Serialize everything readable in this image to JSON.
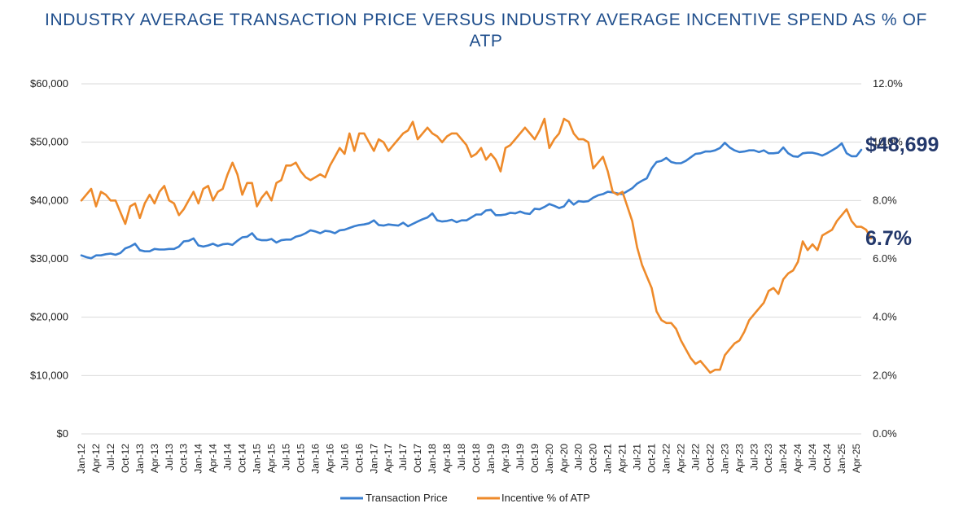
{
  "title_line1": "INDUSTRY AVERAGE TRANSACTION PRICE VERSUS INDUSTRY AVERAGE INCENTIVE SPEND AS % OF",
  "title_line2": "ATP",
  "colors": {
    "atp": "#3a7fd0",
    "incentive": "#ee8a2a",
    "grid": "#d9d9d9",
    "callout": "#23386b",
    "title": "#1f4e8c"
  },
  "chart_data": {
    "type": "line",
    "title": "INDUSTRY AVERAGE TRANSACTION PRICE VERSUS INDUSTRY AVERAGE INCENTIVE SPEND AS % OF ATP",
    "x_start": "Jan-12",
    "x_end": "Apr-25",
    "x_tick_labels": [
      "Jan-12",
      "Apr-12",
      "Jul-12",
      "Oct-12",
      "Jan-13",
      "Apr-13",
      "Jul-13",
      "Oct-13",
      "Jan-14",
      "Apr-14",
      "Jul-14",
      "Oct-14",
      "Jan-15",
      "Apr-15",
      "Jul-15",
      "Oct-15",
      "Jan-16",
      "Apr-16",
      "Jul-16",
      "Oct-16",
      "Jan-17",
      "Apr-17",
      "Jul-17",
      "Oct-17",
      "Jan-18",
      "Apr-18",
      "Jul-18",
      "Oct-18",
      "Jan-19",
      "Apr-19",
      "Jul-19",
      "Oct-19",
      "Jan-20",
      "Apr-20",
      "Jul-20",
      "Oct-20",
      "Jan-21",
      "Apr-21",
      "Jul-21",
      "Oct-21",
      "Jan-22",
      "Apr-22",
      "Jul-22",
      "Oct-22",
      "Jan-23",
      "Apr-23",
      "Jul-23",
      "Oct-23",
      "Jan-24",
      "Apr-24",
      "Jul-24",
      "Oct-24",
      "Jan-25",
      "Apr-25"
    ],
    "y_left": {
      "min": 0,
      "max": 60000,
      "ticks": [
        "$0",
        "$10,000",
        "$20,000",
        "$30,000",
        "$40,000",
        "$50,000",
        "$60,000"
      ]
    },
    "y_right": {
      "min": 0,
      "max": 12,
      "ticks": [
        "0.0%",
        "2.0%",
        "4.0%",
        "6.0%",
        "8.0%",
        "10.0%",
        "12.0%"
      ]
    },
    "series": [
      {
        "name": "Transaction Price",
        "axis": "left",
        "values": [
          30600,
          30300,
          30100,
          30600,
          30600,
          30800,
          30900,
          30700,
          31000,
          31800,
          32100,
          32600,
          31500,
          31300,
          31300,
          31700,
          31600,
          31600,
          31700,
          31700,
          32100,
          33000,
          33100,
          33500,
          32300,
          32100,
          32300,
          32600,
          32200,
          32500,
          32600,
          32400,
          33100,
          33700,
          33800,
          34400,
          33400,
          33200,
          33200,
          33400,
          32800,
          33200,
          33300,
          33300,
          33800,
          34000,
          34400,
          34900,
          34700,
          34400,
          34800,
          34700,
          34400,
          34900,
          35000,
          35300,
          35600,
          35800,
          35900,
          36100,
          36600,
          35800,
          35700,
          35900,
          35800,
          35700,
          36200,
          35600,
          36000,
          36400,
          36800,
          37100,
          37800,
          36600,
          36400,
          36500,
          36700,
          36300,
          36600,
          36600,
          37100,
          37600,
          37600,
          38300,
          38400,
          37500,
          37500,
          37600,
          37900,
          37800,
          38100,
          37800,
          37700,
          38600,
          38500,
          38900,
          39400,
          39100,
          38700,
          39000,
          40100,
          39300,
          39900,
          39800,
          39900,
          40500,
          40900,
          41100,
          41500,
          41400,
          41200,
          41100,
          41600,
          42100,
          42900,
          43400,
          43800,
          45500,
          46600,
          46800,
          47300,
          46600,
          46400,
          46400,
          46800,
          47400,
          48000,
          48100,
          48400,
          48400,
          48600,
          49000,
          49900,
          49100,
          48600,
          48300,
          48400,
          48600,
          48600,
          48300,
          48600,
          48100,
          48100,
          48200,
          49100,
          48100,
          47600,
          47500,
          48100,
          48200,
          48200,
          48000,
          47700,
          48100,
          48600,
          49100,
          49800,
          48100,
          47600,
          47600,
          48699
        ]
      },
      {
        "name": "Incentive % of ATP",
        "axis": "right",
        "values": [
          8.0,
          8.2,
          8.4,
          7.8,
          8.3,
          8.2,
          8.0,
          8.0,
          7.6,
          7.2,
          7.8,
          7.9,
          7.4,
          7.9,
          8.2,
          7.9,
          8.3,
          8.5,
          8.0,
          7.9,
          7.5,
          7.7,
          8.0,
          8.3,
          7.9,
          8.4,
          8.5,
          8.0,
          8.3,
          8.4,
          8.9,
          9.3,
          8.9,
          8.2,
          8.6,
          8.6,
          7.8,
          8.1,
          8.3,
          8.0,
          8.6,
          8.7,
          9.2,
          9.2,
          9.3,
          9.0,
          8.8,
          8.7,
          8.8,
          8.9,
          8.8,
          9.2,
          9.5,
          9.8,
          9.6,
          10.3,
          9.7,
          10.3,
          10.3,
          10.0,
          9.7,
          10.1,
          10.0,
          9.7,
          9.9,
          10.1,
          10.3,
          10.4,
          10.7,
          10.1,
          10.3,
          10.5,
          10.3,
          10.2,
          10.0,
          10.2,
          10.3,
          10.3,
          10.1,
          9.9,
          9.5,
          9.6,
          9.8,
          9.4,
          9.6,
          9.4,
          9.0,
          9.8,
          9.9,
          10.1,
          10.3,
          10.5,
          10.3,
          10.1,
          10.4,
          10.8,
          9.8,
          10.1,
          10.3,
          10.8,
          10.7,
          10.3,
          10.1,
          10.1,
          10.0,
          9.1,
          9.3,
          9.5,
          9.0,
          8.3,
          8.2,
          8.3,
          7.8,
          7.3,
          6.4,
          5.8,
          5.4,
          5.0,
          4.2,
          3.9,
          3.8,
          3.8,
          3.6,
          3.2,
          2.9,
          2.6,
          2.4,
          2.5,
          2.3,
          2.1,
          2.2,
          2.2,
          2.7,
          2.9,
          3.1,
          3.2,
          3.5,
          3.9,
          4.1,
          4.3,
          4.5,
          4.9,
          5.0,
          4.8,
          5.3,
          5.5,
          5.6,
          5.9,
          6.6,
          6.3,
          6.5,
          6.3,
          6.8,
          6.9,
          7.0,
          7.3,
          7.5,
          7.7,
          7.3,
          7.1,
          7.1,
          7.0,
          6.7
        ]
      }
    ],
    "callouts": {
      "atp": "$48,699",
      "incentive": "6.7%"
    },
    "legend": [
      "Transaction Price",
      "Incentive % of ATP"
    ]
  }
}
